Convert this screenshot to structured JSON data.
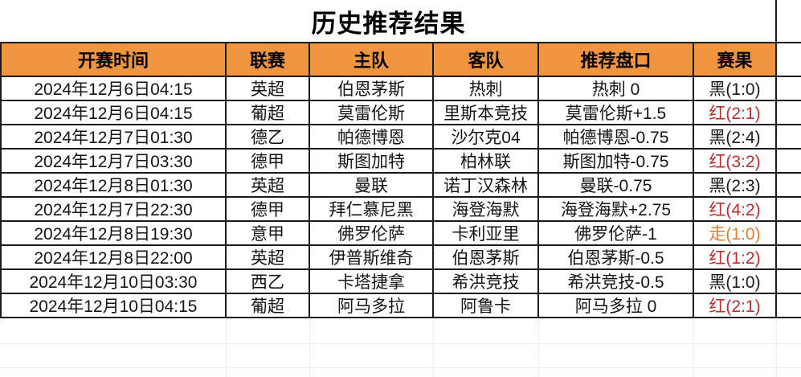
{
  "title": "历史推荐结果",
  "colors": {
    "header_bg": "#F0953F",
    "line": "#1B1B1B",
    "red": "#C12B2B",
    "draw": "#E07E33",
    "result_black": "#1A1A1A",
    "grid_faint": "#F2ECEC"
  },
  "table": {
    "headers": {
      "time": "开赛时间",
      "league": "联赛",
      "home": "主队",
      "away": "客队",
      "handicap": "推荐盘口",
      "result": "赛果"
    },
    "rows": [
      {
        "time": "2024年12月6日04:15",
        "league": "英超",
        "home": "伯恩茅斯",
        "away": "热刺",
        "handicap": "热刺 0",
        "result": "黑(1:0)",
        "result_type": "black"
      },
      {
        "time": "2024年12月6日04:15",
        "league": "葡超",
        "home": "莫雷伦斯",
        "away": "里斯本竞技",
        "handicap": "莫雷伦斯+1.5",
        "result": "红(2:1)",
        "result_type": "red"
      },
      {
        "time": "2024年12月7日01:30",
        "league": "德乙",
        "home": "帕德博恩",
        "away": "沙尔克04",
        "handicap": "帕德博恩-0.75",
        "result": "黑(2:4)",
        "result_type": "black"
      },
      {
        "time": "2024年12月7日03:30",
        "league": "德甲",
        "home": "斯图加特",
        "away": "柏林联",
        "handicap": "斯图加特-0.75",
        "result": "红(3:2)",
        "result_type": "red"
      },
      {
        "time": "2024年12月8日01:30",
        "league": "英超",
        "home": "曼联",
        "away": "诺丁汉森林",
        "handicap": "曼联-0.75",
        "result": "黑(2:3)",
        "result_type": "black"
      },
      {
        "time": "2024年12月7日22:30",
        "league": "德甲",
        "home": "拜仁慕尼黑",
        "away": "海登海默",
        "handicap": "海登海默+2.75",
        "result": "红(4:2)",
        "result_type": "red"
      },
      {
        "time": "2024年12月8日19:30",
        "league": "意甲",
        "home": "佛罗伦萨",
        "away": "卡利亚里",
        "handicap": "佛罗伦萨-1",
        "result": "走(1:0)",
        "result_type": "draw"
      },
      {
        "time": "2024年12月8日22:00",
        "league": "英超",
        "home": "伊普斯维奇",
        "away": "伯恩茅斯",
        "handicap": "伯恩茅斯-0.5",
        "result": "红(1:2)",
        "result_type": "red"
      },
      {
        "time": "2024年12月10日03:30",
        "league": "西乙",
        "home": "卡塔捷拿",
        "away": "希洪竞技",
        "handicap": "希洪竞技-0.5",
        "result": "黑(1:0)",
        "result_type": "black"
      },
      {
        "time": "2024年12月10日04:15",
        "league": "葡超",
        "home": "阿马多拉",
        "away": "阿鲁卡",
        "handicap": "阿马多拉 0",
        "result": "红(2:1)",
        "result_type": "red"
      }
    ]
  }
}
